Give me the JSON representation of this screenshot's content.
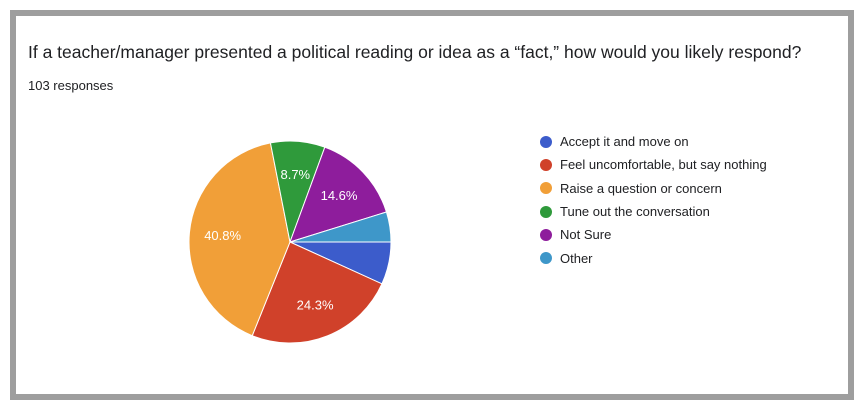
{
  "chart_data": {
    "type": "pie",
    "title": "If a teacher/manager presented a political reading or idea as a “fact,” how would you likely respond?",
    "subtitle": "103 responses",
    "legend_position": "right",
    "categories": [
      "Accept it and move on",
      "Feel uncomfortable, but say nothing",
      "Raise a question or concern",
      "Tune out the conversation",
      "Not Sure",
      "Other"
    ],
    "values": [
      6.8,
      24.3,
      40.8,
      8.7,
      14.6,
      4.8
    ],
    "data_labels": [
      "",
      "24.3%",
      "40.8%",
      "8.7%",
      "14.6%",
      ""
    ],
    "colors": [
      "#3c5ccb",
      "#d0412a",
      "#f19f38",
      "#2f9a3b",
      "#8e1d9c",
      "#3e97c9"
    ]
  }
}
